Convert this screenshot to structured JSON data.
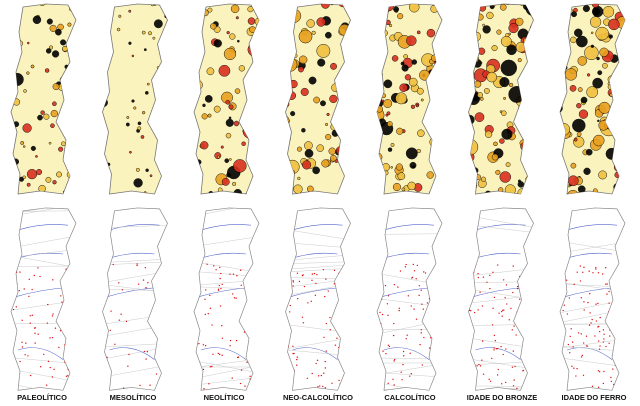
{
  "labels": [
    "PALEOLÍTICO",
    "MESOLÍTICO",
    "NEOLÍTICO",
    "NEO-CALCOLÍTICO",
    "CALCOLÍTICO",
    "IDADE DO BRONZE",
    "IDADE DO FERRO"
  ]
}
